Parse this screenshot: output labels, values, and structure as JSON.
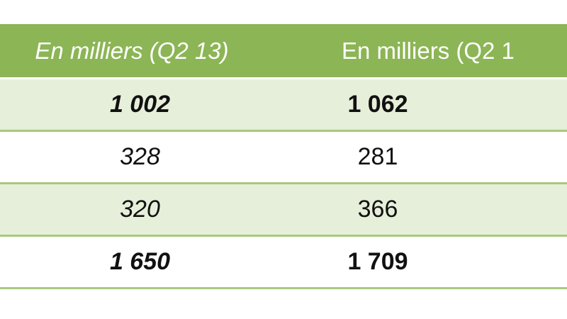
{
  "table": {
    "headers": [
      "En milliers (Q2 13)",
      "En milliers (Q2 1"
    ],
    "rows": [
      {
        "col1": "1 002",
        "col2": "1 062",
        "bold": true
      },
      {
        "col1": "328",
        "col2": "281",
        "bold": false
      },
      {
        "col1": "320",
        "col2": "366",
        "bold": false
      },
      {
        "col1": "1 650",
        "col2": "1 709",
        "bold": true
      }
    ]
  },
  "colors": {
    "header_bg": "#8cb555",
    "header_text": "#ffffff",
    "shaded_row_bg": "#e6efd9",
    "row_border": "#a8c97d",
    "body_text": "#111111"
  }
}
